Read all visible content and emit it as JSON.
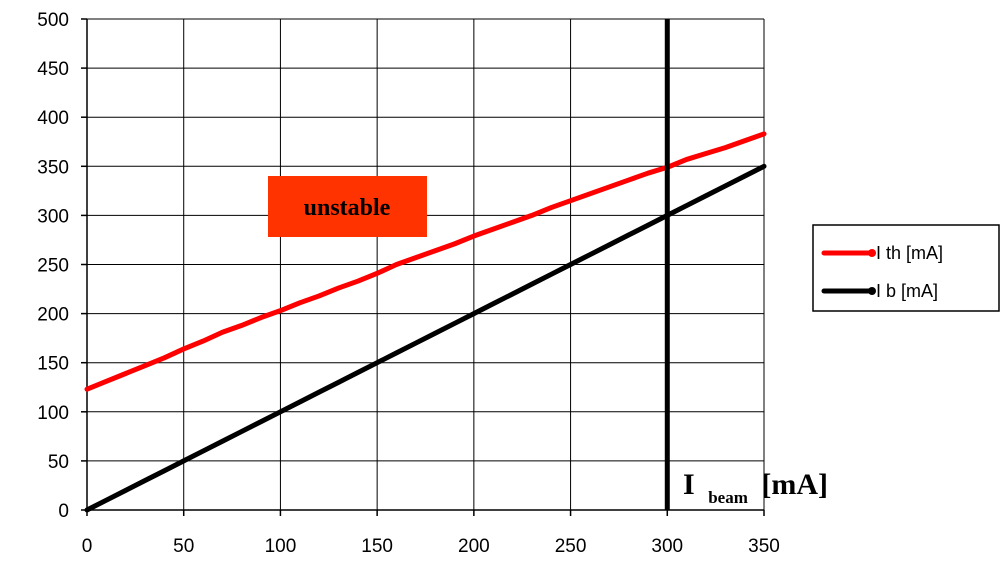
{
  "chart_data": {
    "type": "line",
    "x": [
      0,
      10,
      20,
      30,
      40,
      50,
      60,
      70,
      80,
      90,
      100,
      110,
      120,
      130,
      140,
      150,
      160,
      170,
      180,
      190,
      200,
      210,
      220,
      230,
      240,
      250,
      260,
      270,
      280,
      290,
      300,
      310,
      320,
      330,
      340,
      350
    ],
    "series": [
      {
        "name": "I th [mA]",
        "color": "#ff0000",
        "values": [
          123,
          131,
          139,
          147,
          155,
          164,
          172,
          181,
          188,
          196,
          203,
          211,
          218,
          226,
          233,
          241,
          250,
          257,
          264,
          271,
          279,
          286,
          293,
          300,
          308,
          315,
          322,
          329,
          336,
          343,
          349,
          357,
          363,
          369,
          376,
          383
        ]
      },
      {
        "name": "I b [mA]",
        "color": "#000000",
        "values": [
          0,
          10,
          20,
          30,
          40,
          50,
          60,
          70,
          80,
          90,
          100,
          110,
          120,
          130,
          140,
          150,
          160,
          170,
          180,
          190,
          200,
          210,
          220,
          230,
          240,
          250,
          260,
          270,
          280,
          290,
          300,
          310,
          320,
          330,
          340,
          350
        ]
      }
    ],
    "xlim": [
      0,
      350
    ],
    "ylim": [
      0,
      500
    ],
    "xticks": [
      "0",
      "50",
      "100",
      "150",
      "200",
      "250",
      "300",
      "350"
    ],
    "yticks": [
      "0",
      "50",
      "100",
      "150",
      "200",
      "250",
      "300",
      "350",
      "400",
      "450",
      "500"
    ],
    "grid": true,
    "legend_position": "right",
    "vline_x": 300,
    "annotation": {
      "text": "unstable",
      "background": "#ff3300",
      "color": "#ffffff"
    },
    "axis_label": {
      "main": "I",
      "sub": "beam",
      "unit": "[mA]"
    }
  }
}
